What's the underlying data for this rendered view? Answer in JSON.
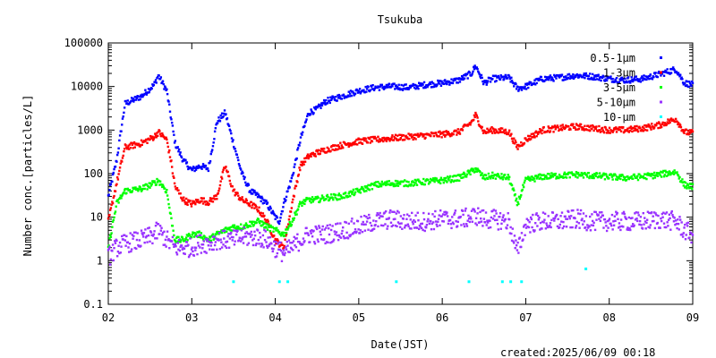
{
  "chart_data": {
    "type": "scatter",
    "title": "Tsukuba",
    "xlabel": "Date(JST)",
    "ylabel": "Number conc.[particles/L]",
    "footer": "created:2025/06/09 00:18",
    "yscale": "log",
    "ylim": [
      0.1,
      100000
    ],
    "xlim": [
      "02",
      "09"
    ],
    "x_ticks": [
      "02",
      "03",
      "04",
      "05",
      "06",
      "07",
      "08",
      "09"
    ],
    "y_ticks": [
      "0.1",
      "1",
      "10",
      "100",
      "1000",
      "10000",
      "100000"
    ],
    "y_tick_values": [
      0.1,
      1,
      10,
      100,
      1000,
      10000,
      100000
    ],
    "grid": false,
    "legend_position": "top-right",
    "series": [
      {
        "name": "0.5-1μm",
        "color": "#0000ff",
        "points": [
          [
            2.0,
            30
          ],
          [
            2.1,
            200
          ],
          [
            2.2,
            4000
          ],
          [
            2.4,
            6000
          ],
          [
            2.55,
            11000
          ],
          [
            2.6,
            18000
          ],
          [
            2.7,
            8000
          ],
          [
            2.75,
            2000
          ],
          [
            2.8,
            500
          ],
          [
            2.9,
            200
          ],
          [
            3.0,
            120
          ],
          [
            3.1,
            150
          ],
          [
            3.2,
            130
          ],
          [
            3.3,
            1500
          ],
          [
            3.4,
            2500
          ],
          [
            3.5,
            500
          ],
          [
            3.6,
            100
          ],
          [
            3.7,
            40
          ],
          [
            3.8,
            30
          ],
          [
            3.9,
            20
          ],
          [
            4.0,
            10
          ],
          [
            4.05,
            8
          ],
          [
            4.1,
            20
          ],
          [
            4.2,
            80
          ],
          [
            4.3,
            600
          ],
          [
            4.4,
            2500
          ],
          [
            4.5,
            3000
          ],
          [
            4.6,
            4500
          ],
          [
            4.8,
            6000
          ],
          [
            5.0,
            8000
          ],
          [
            5.2,
            9500
          ],
          [
            5.4,
            10000
          ],
          [
            5.6,
            9500
          ],
          [
            5.8,
            11000
          ],
          [
            6.0,
            12000
          ],
          [
            6.2,
            14000
          ],
          [
            6.35,
            20000
          ],
          [
            6.4,
            30000
          ],
          [
            6.5,
            12000
          ],
          [
            6.6,
            15000
          ],
          [
            6.8,
            16000
          ],
          [
            6.9,
            9000
          ],
          [
            7.0,
            10000
          ],
          [
            7.2,
            15000
          ],
          [
            7.4,
            16000
          ],
          [
            7.6,
            18000
          ],
          [
            7.8,
            17000
          ],
          [
            8.0,
            15000
          ],
          [
            8.2,
            14000
          ],
          [
            8.4,
            15000
          ],
          [
            8.6,
            19000
          ],
          [
            8.8,
            25000
          ],
          [
            8.9,
            12000
          ],
          [
            9.0,
            11000
          ]
        ]
      },
      {
        "name": "1-3μm",
        "color": "#ff0000",
        "points": [
          [
            2.0,
            8
          ],
          [
            2.1,
            60
          ],
          [
            2.2,
            400
          ],
          [
            2.4,
            500
          ],
          [
            2.55,
            700
          ],
          [
            2.6,
            900
          ],
          [
            2.7,
            600
          ],
          [
            2.75,
            200
          ],
          [
            2.8,
            50
          ],
          [
            2.9,
            25
          ],
          [
            3.0,
            20
          ],
          [
            3.1,
            25
          ],
          [
            3.2,
            22
          ],
          [
            3.3,
            30
          ],
          [
            3.4,
            150
          ],
          [
            3.5,
            40
          ],
          [
            3.6,
            25
          ],
          [
            3.7,
            20
          ],
          [
            3.8,
            15
          ],
          [
            3.9,
            8
          ],
          [
            4.0,
            3
          ],
          [
            4.1,
            2
          ],
          [
            4.2,
            20
          ],
          [
            4.3,
            150
          ],
          [
            4.4,
            250
          ],
          [
            4.5,
            300
          ],
          [
            4.6,
            350
          ],
          [
            4.8,
            450
          ],
          [
            5.0,
            550
          ],
          [
            5.2,
            600
          ],
          [
            5.4,
            650
          ],
          [
            5.6,
            700
          ],
          [
            5.8,
            750
          ],
          [
            6.0,
            800
          ],
          [
            6.2,
            900
          ],
          [
            6.35,
            1500
          ],
          [
            6.4,
            2200
          ],
          [
            6.5,
            900
          ],
          [
            6.6,
            1000
          ],
          [
            6.8,
            900
          ],
          [
            6.9,
            400
          ],
          [
            7.0,
            600
          ],
          [
            7.2,
            1000
          ],
          [
            7.4,
            1100
          ],
          [
            7.6,
            1200
          ],
          [
            7.8,
            1100
          ],
          [
            8.0,
            1000
          ],
          [
            8.2,
            1000
          ],
          [
            8.4,
            1100
          ],
          [
            8.6,
            1300
          ],
          [
            8.8,
            1800
          ],
          [
            8.9,
            900
          ],
          [
            9.0,
            850
          ]
        ]
      },
      {
        "name": "3-5μm",
        "color": "#00ff00",
        "points": [
          [
            2.0,
            2
          ],
          [
            2.1,
            20
          ],
          [
            2.2,
            40
          ],
          [
            2.4,
            45
          ],
          [
            2.55,
            60
          ],
          [
            2.6,
            70
          ],
          [
            2.7,
            40
          ],
          [
            2.75,
            10
          ],
          [
            2.8,
            3
          ],
          [
            2.9,
            3
          ],
          [
            3.0,
            4
          ],
          [
            3.1,
            4
          ],
          [
            3.2,
            3
          ],
          [
            3.3,
            4
          ],
          [
            3.4,
            5
          ],
          [
            3.5,
            6
          ],
          [
            3.6,
            6
          ],
          [
            3.7,
            7
          ],
          [
            3.8,
            8
          ],
          [
            3.9,
            6
          ],
          [
            4.0,
            5
          ],
          [
            4.1,
            4
          ],
          [
            4.2,
            8
          ],
          [
            4.3,
            20
          ],
          [
            4.4,
            25
          ],
          [
            4.5,
            25
          ],
          [
            4.6,
            28
          ],
          [
            4.8,
            30
          ],
          [
            5.0,
            40
          ],
          [
            5.2,
            55
          ],
          [
            5.4,
            60
          ],
          [
            5.6,
            60
          ],
          [
            5.8,
            65
          ],
          [
            6.0,
            70
          ],
          [
            6.2,
            80
          ],
          [
            6.35,
            110
          ],
          [
            6.4,
            130
          ],
          [
            6.5,
            80
          ],
          [
            6.6,
            90
          ],
          [
            6.8,
            80
          ],
          [
            6.9,
            20
          ],
          [
            7.0,
            70
          ],
          [
            7.2,
            85
          ],
          [
            7.4,
            90
          ],
          [
            7.6,
            95
          ],
          [
            7.8,
            90
          ],
          [
            8.0,
            85
          ],
          [
            8.2,
            80
          ],
          [
            8.4,
            85
          ],
          [
            8.6,
            95
          ],
          [
            8.8,
            110
          ],
          [
            8.9,
            55
          ],
          [
            9.0,
            50
          ]
        ]
      },
      {
        "name": "5-10μm",
        "color": "#9933ff",
        "points": [
          [
            2.0,
            1.2
          ],
          [
            2.1,
            2
          ],
          [
            2.2,
            2.5
          ],
          [
            2.4,
            3
          ],
          [
            2.55,
            4
          ],
          [
            2.6,
            5
          ],
          [
            2.7,
            3
          ],
          [
            2.8,
            2
          ],
          [
            2.9,
            2
          ],
          [
            3.0,
            2
          ],
          [
            3.1,
            2.5
          ],
          [
            3.2,
            2.5
          ],
          [
            3.3,
            3
          ],
          [
            3.4,
            3
          ],
          [
            3.5,
            3
          ],
          [
            3.6,
            3.5
          ],
          [
            3.7,
            3.5
          ],
          [
            3.8,
            3.5
          ],
          [
            3.9,
            3
          ],
          [
            4.0,
            2
          ],
          [
            4.1,
            1.5
          ],
          [
            4.2,
            2
          ],
          [
            4.3,
            3
          ],
          [
            4.4,
            4
          ],
          [
            4.5,
            4
          ],
          [
            4.6,
            4
          ],
          [
            4.8,
            5
          ],
          [
            5.0,
            6
          ],
          [
            5.2,
            8
          ],
          [
            5.4,
            9
          ],
          [
            5.6,
            8
          ],
          [
            5.8,
            8
          ],
          [
            6.0,
            9
          ],
          [
            6.2,
            9
          ],
          [
            6.35,
            10
          ],
          [
            6.4,
            11
          ],
          [
            6.5,
            9
          ],
          [
            6.6,
            9
          ],
          [
            6.8,
            8
          ],
          [
            6.9,
            1.5
          ],
          [
            7.0,
            7
          ],
          [
            7.2,
            8
          ],
          [
            7.4,
            8
          ],
          [
            7.6,
            9
          ],
          [
            7.8,
            8
          ],
          [
            8.0,
            8
          ],
          [
            8.2,
            8
          ],
          [
            8.4,
            8
          ],
          [
            8.6,
            9
          ],
          [
            8.8,
            8
          ],
          [
            8.9,
            5
          ],
          [
            9.0,
            4
          ]
        ]
      },
      {
        "name": "10-μm",
        "color": "#00ffff",
        "points": [
          [
            3.5,
            0.33
          ],
          [
            4.05,
            0.33
          ],
          [
            4.15,
            0.33
          ],
          [
            5.45,
            0.33
          ],
          [
            6.32,
            0.33
          ],
          [
            6.72,
            0.33
          ],
          [
            6.82,
            0.33
          ],
          [
            6.95,
            0.33
          ],
          [
            7.72,
            0.65
          ]
        ]
      }
    ]
  }
}
